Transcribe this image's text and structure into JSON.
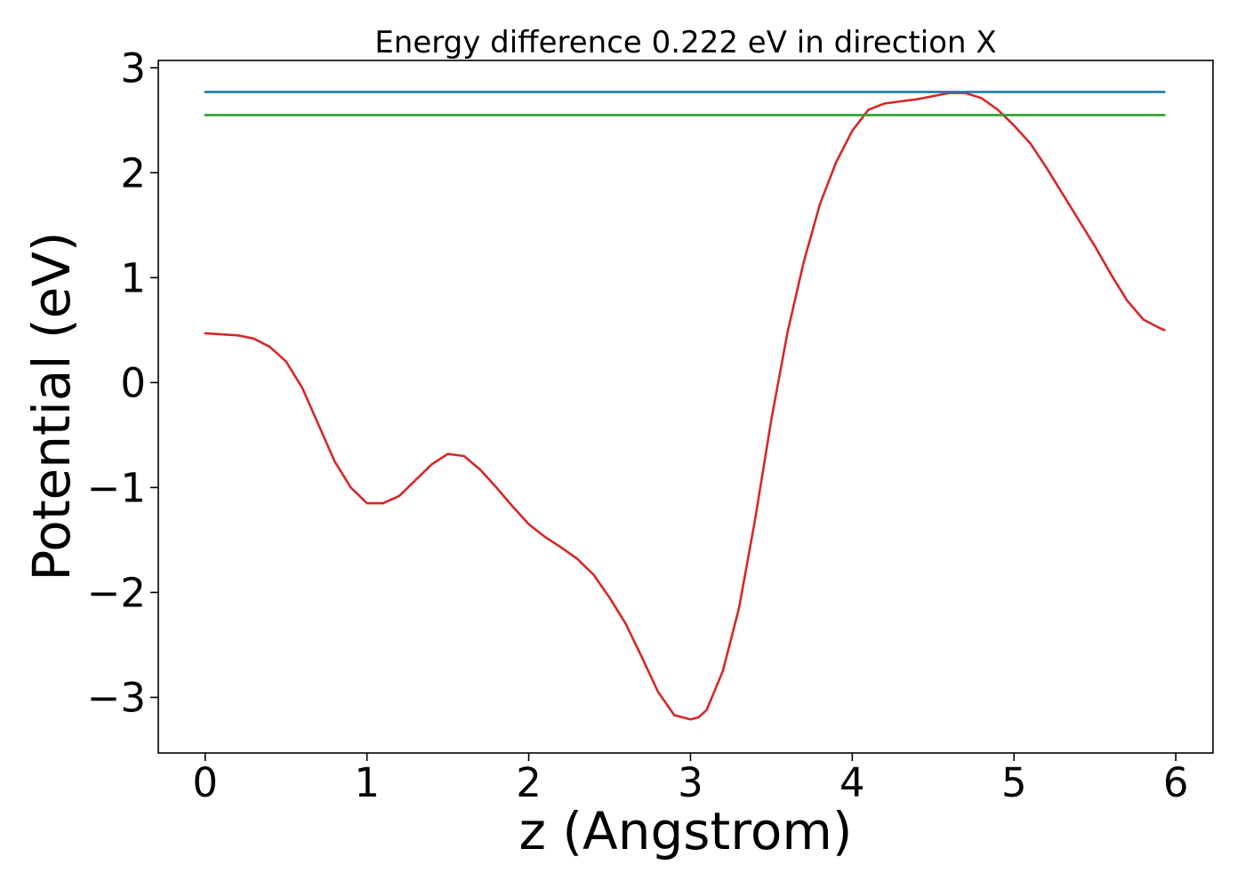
{
  "chart_data": {
    "type": "line",
    "title": "Energy difference 0.222 eV in direction X",
    "xlabel": "z (Angstrom)",
    "ylabel": "Potential (eV)",
    "xlim": [
      -0.29,
      6.23
    ],
    "ylim": [
      -3.53,
      3.07
    ],
    "xticks": [
      0,
      1,
      2,
      3,
      4,
      5,
      6
    ],
    "yticks": [
      -3,
      -2,
      -1,
      0,
      1,
      2,
      3
    ],
    "xtick_labels": [
      "0",
      "1",
      "2",
      "3",
      "4",
      "5",
      "6"
    ],
    "ytick_labels": [
      "−3",
      "−2",
      "−1",
      "0",
      "1",
      "2",
      "3"
    ],
    "grid": false,
    "series": [
      {
        "color": "#d62728",
        "x": [
          0.0,
          0.1,
          0.2,
          0.3,
          0.4,
          0.5,
          0.6,
          0.7,
          0.8,
          0.9,
          1.0,
          1.1,
          1.2,
          1.3,
          1.4,
          1.5,
          1.6,
          1.7,
          1.8,
          1.9,
          2.0,
          2.1,
          2.2,
          2.3,
          2.4,
          2.5,
          2.6,
          2.7,
          2.8,
          2.9,
          3.0,
          3.05,
          3.1,
          3.2,
          3.3,
          3.4,
          3.5,
          3.6,
          3.7,
          3.8,
          3.9,
          4.0,
          4.1,
          4.2,
          4.3,
          4.4,
          4.5,
          4.6,
          4.7,
          4.8,
          4.9,
          5.0,
          5.1,
          5.2,
          5.3,
          5.4,
          5.5,
          5.6,
          5.7,
          5.8,
          5.9,
          5.93
        ],
        "y": [
          0.47,
          0.46,
          0.45,
          0.42,
          0.34,
          0.2,
          -0.05,
          -0.4,
          -0.75,
          -1.0,
          -1.15,
          -1.15,
          -1.08,
          -0.93,
          -0.78,
          -0.68,
          -0.7,
          -0.83,
          -1.0,
          -1.18,
          -1.35,
          -1.47,
          -1.57,
          -1.68,
          -1.83,
          -2.05,
          -2.3,
          -2.62,
          -2.95,
          -3.17,
          -3.21,
          -3.19,
          -3.12,
          -2.75,
          -2.15,
          -1.3,
          -0.35,
          0.48,
          1.15,
          1.7,
          2.1,
          2.4,
          2.6,
          2.66,
          2.68,
          2.7,
          2.73,
          2.76,
          2.76,
          2.71,
          2.6,
          2.45,
          2.28,
          2.05,
          1.8,
          1.55,
          1.3,
          1.03,
          0.78,
          0.6,
          0.52,
          0.5
        ]
      },
      {
        "color": "#1f77b4",
        "x": [
          0.0,
          5.93
        ],
        "y": [
          2.77,
          2.77
        ]
      },
      {
        "color": "#2ca02c",
        "x": [
          0.0,
          5.93
        ],
        "y": [
          2.55,
          2.55
        ]
      }
    ]
  }
}
